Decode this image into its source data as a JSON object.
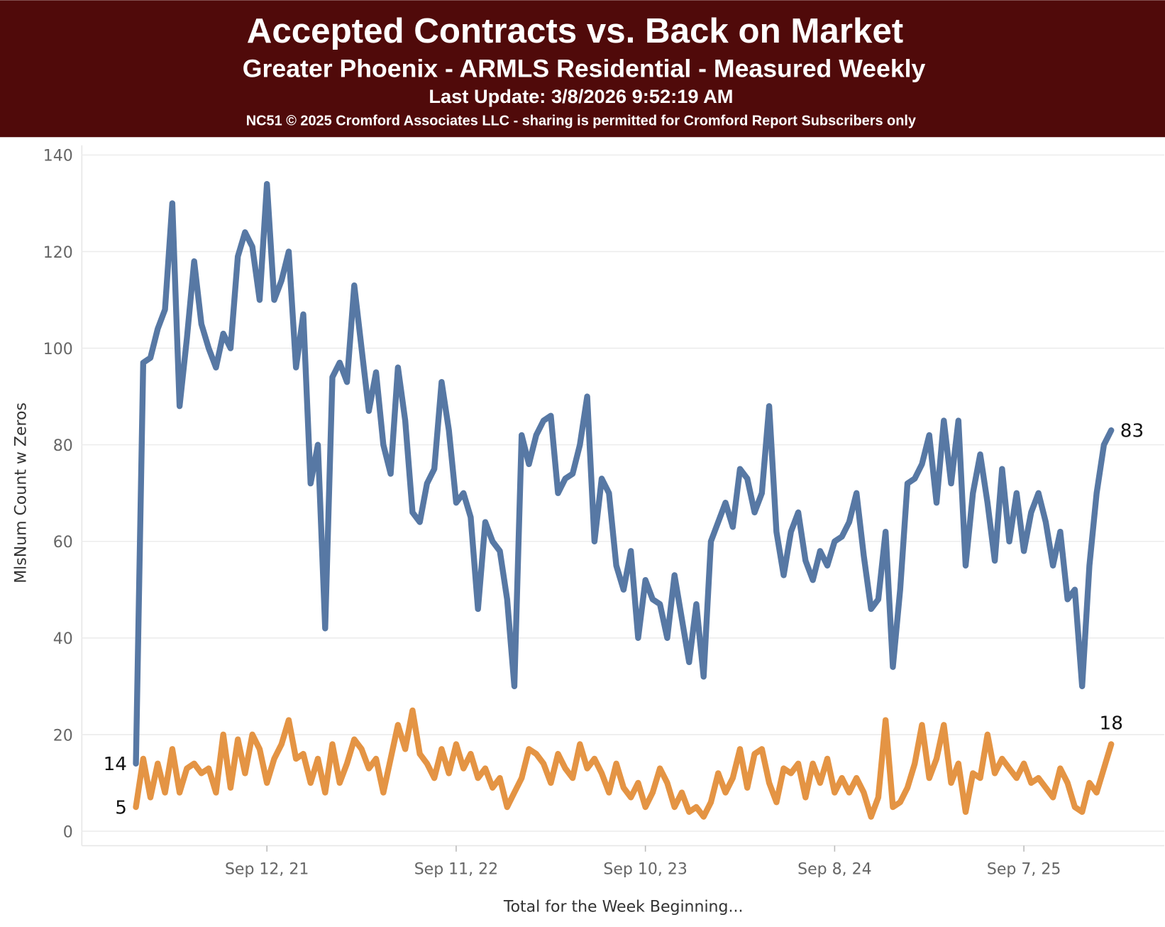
{
  "chart_data": {
    "type": "line",
    "title": "Accepted Contracts vs. Back on Market",
    "subtitle": "Greater Phoenix - ARMLS Residential - Measured Weekly",
    "notes": [
      "Last Update: 3/8/2026 9:52:19 AM",
      "NC51 © 2025 Cromford Associates LLC - sharing is permitted for Cromford Report Subscribers only"
    ],
    "x_label": "Total for the Week Beginning...",
    "y_label": "MlsNum Count w Zeros",
    "x": [
      "2021-01-03",
      "2021-01-17",
      "2021-01-31",
      "2021-02-14",
      "2021-02-28",
      "2021-03-14",
      "2021-03-28",
      "2021-04-11",
      "2021-04-25",
      "2021-05-09",
      "2021-05-23",
      "2021-06-06",
      "2021-06-20",
      "2021-07-04",
      "2021-07-18",
      "2021-08-01",
      "2021-08-15",
      "2021-08-29",
      "2021-09-12",
      "2021-09-26",
      "2021-10-10",
      "2021-10-24",
      "2021-11-07",
      "2021-11-21",
      "2021-12-05",
      "2021-12-19",
      "2022-01-02",
      "2022-01-16",
      "2022-01-30",
      "2022-02-13",
      "2022-02-27",
      "2022-03-13",
      "2022-03-27",
      "2022-04-10",
      "2022-04-24",
      "2022-05-08",
      "2022-05-22",
      "2022-06-05",
      "2022-06-19",
      "2022-07-03",
      "2022-07-17",
      "2022-07-31",
      "2022-08-14",
      "2022-08-28",
      "2022-09-11",
      "2022-09-25",
      "2022-10-09",
      "2022-10-23",
      "2022-11-06",
      "2022-11-20",
      "2022-12-04",
      "2022-12-18",
      "2023-01-01",
      "2023-01-15",
      "2023-01-29",
      "2023-02-12",
      "2023-02-26",
      "2023-03-12",
      "2023-03-26",
      "2023-04-09",
      "2023-04-23",
      "2023-05-07",
      "2023-05-21",
      "2023-06-04",
      "2023-06-18",
      "2023-07-02",
      "2023-07-16",
      "2023-07-30",
      "2023-08-13",
      "2023-08-27",
      "2023-09-10",
      "2023-09-24",
      "2023-10-08",
      "2023-10-22",
      "2023-11-05",
      "2023-11-19",
      "2023-12-03",
      "2023-12-17",
      "2023-12-31",
      "2024-01-14",
      "2024-01-28",
      "2024-02-11",
      "2024-02-25",
      "2024-03-10",
      "2024-03-24",
      "2024-04-07",
      "2024-04-21",
      "2024-05-05",
      "2024-05-19",
      "2024-06-02",
      "2024-06-16",
      "2024-06-30",
      "2024-07-14",
      "2024-07-28",
      "2024-08-11",
      "2024-08-25",
      "2024-09-08",
      "2024-09-22",
      "2024-10-06",
      "2024-10-20",
      "2024-11-03",
      "2024-11-17",
      "2024-12-01",
      "2024-12-15",
      "2024-12-29",
      "2025-01-12",
      "2025-01-26",
      "2025-02-09",
      "2025-02-23",
      "2025-03-09",
      "2025-03-23",
      "2025-04-06",
      "2025-04-20",
      "2025-05-04",
      "2025-05-18",
      "2025-06-01",
      "2025-06-15",
      "2025-06-29",
      "2025-07-13",
      "2025-07-27",
      "2025-08-10",
      "2025-08-24",
      "2025-09-07",
      "2025-09-21",
      "2025-10-05",
      "2025-10-19",
      "2025-11-02",
      "2025-11-16",
      "2025-11-30",
      "2025-12-14",
      "2025-12-28",
      "2026-01-11",
      "2026-01-25",
      "2026-02-08",
      "2026-02-22"
    ],
    "xlim": [
      "2020-09-21",
      "2026-06-04"
    ],
    "xticks": [
      {
        "value": "2021-09-12",
        "label": "Sep 12, 21"
      },
      {
        "value": "2022-09-11",
        "label": "Sep 11, 22"
      },
      {
        "value": "2023-09-10",
        "label": "Sep 10, 23"
      },
      {
        "value": "2024-09-08",
        "label": "Sep 8, 24"
      },
      {
        "value": "2025-09-07",
        "label": "Sep 7, 25"
      }
    ],
    "ylim": [
      -3,
      142
    ],
    "yticks": [
      0,
      20,
      40,
      60,
      80,
      100,
      120,
      140
    ],
    "grid": true,
    "series": [
      {
        "color": "#5778a4",
        "values": [
          14,
          97,
          98,
          104,
          108,
          130,
          88,
          102,
          118,
          105,
          100,
          96,
          103,
          100,
          119,
          124,
          121,
          110,
          134,
          110,
          114,
          120,
          96,
          107,
          72,
          80,
          42,
          94,
          97,
          93,
          113,
          100,
          87,
          95,
          80,
          74,
          96,
          85,
          66,
          64,
          72,
          75,
          93,
          83,
          68,
          70,
          65,
          46,
          64,
          60,
          58,
          48,
          30,
          82,
          76,
          82,
          85,
          86,
          70,
          73,
          74,
          80,
          90,
          60,
          73,
          70,
          55,
          50,
          58,
          40,
          52,
          48,
          47,
          40,
          53,
          44,
          35,
          47,
          32,
          60,
          64,
          68,
          63,
          75,
          73,
          66,
          70,
          88,
          62,
          53,
          62,
          66,
          56,
          52,
          58,
          55,
          60,
          61,
          64,
          70,
          57,
          46,
          48,
          62,
          34,
          50,
          72,
          73,
          76,
          82,
          68,
          85,
          72,
          85,
          55,
          70,
          78,
          68,
          56,
          75,
          60,
          70,
          58,
          66,
          70,
          64,
          55,
          62,
          48,
          50,
          30,
          55,
          70,
          80,
          83
        ]
      },
      {
        "color": "#e49444",
        "values": [
          5,
          15,
          7,
          14,
          8,
          17,
          8,
          13,
          14,
          12,
          13,
          8,
          20,
          9,
          19,
          12,
          20,
          17,
          10,
          15,
          18,
          23,
          15,
          16,
          10,
          15,
          8,
          18,
          10,
          14,
          19,
          17,
          13,
          15,
          8,
          15,
          22,
          17,
          25,
          16,
          14,
          11,
          17,
          12,
          18,
          13,
          16,
          11,
          13,
          9,
          11,
          5,
          8,
          11,
          17,
          16,
          14,
          10,
          16,
          13,
          11,
          18,
          13,
          15,
          12,
          8,
          14,
          9,
          7,
          10,
          5,
          8,
          13,
          10,
          5,
          8,
          4,
          5,
          3,
          6,
          12,
          8,
          11,
          17,
          9,
          16,
          17,
          10,
          6,
          13,
          12,
          14,
          7,
          14,
          10,
          15,
          8,
          11,
          8,
          11,
          8,
          3,
          7,
          23,
          5,
          6,
          9,
          14,
          22,
          11,
          15,
          22,
          10,
          14,
          4,
          12,
          11,
          20,
          12,
          15,
          13,
          11,
          14,
          10,
          11,
          9,
          7,
          13,
          10,
          5,
          4,
          10,
          8,
          13,
          18
        ]
      }
    ]
  }
}
